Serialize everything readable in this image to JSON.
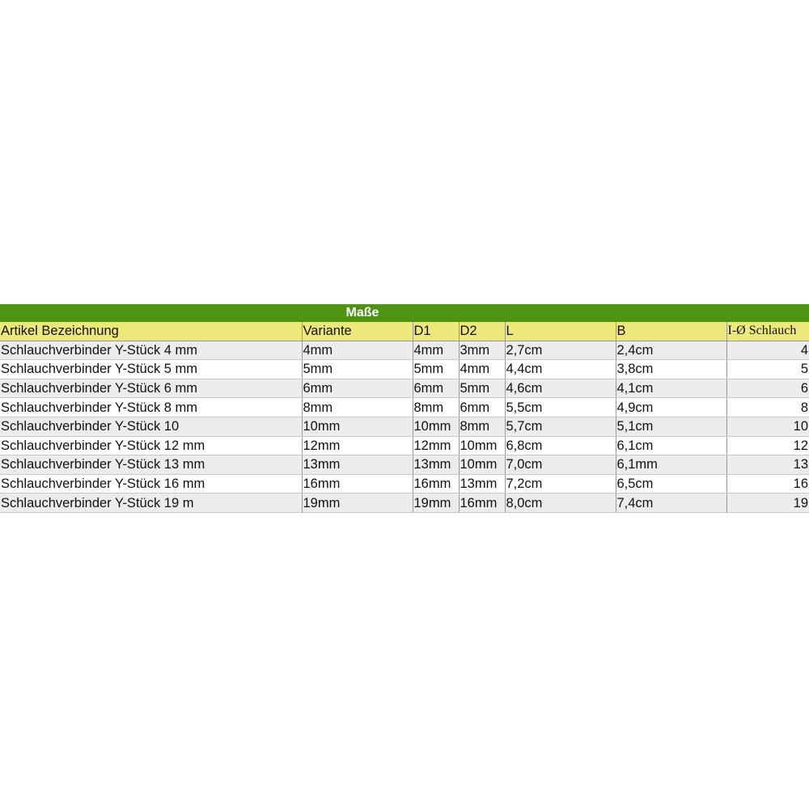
{
  "title": "Maße",
  "headers": [
    "Artikel Bezeichnung",
    "Variante",
    "D1",
    "D2",
    "L",
    "B",
    "I-Ø Schlauch"
  ],
  "rows": [
    [
      "Schlauchverbinder Y-Stück 4 mm",
      "4mm",
      "4mm",
      "3mm",
      "2,7cm",
      "2,4cm",
      "4"
    ],
    [
      "Schlauchverbinder Y-Stück 5 mm",
      "5mm",
      "5mm",
      "4mm",
      "4,4cm",
      "3,8cm",
      "5"
    ],
    [
      "Schlauchverbinder Y-Stück 6 mm",
      "6mm",
      "6mm",
      "5mm",
      "4,6cm",
      "4,1cm",
      "6"
    ],
    [
      "Schlauchverbinder Y-Stück 8 mm",
      "8mm",
      "8mm",
      "6mm",
      "5,5cm",
      "4,9cm",
      "8"
    ],
    [
      "Schlauchverbinder Y-Stück 10",
      "10mm",
      "10mm",
      "8mm",
      "5,7cm",
      "5,1cm",
      "10"
    ],
    [
      "Schlauchverbinder Y-Stück 12 mm",
      "12mm",
      "12mm",
      "10mm",
      "6,8cm",
      "6,1cm",
      "12"
    ],
    [
      "Schlauchverbinder Y-Stück 13 mm",
      "13mm",
      "13mm",
      "10mm",
      "7,0cm",
      "6,1mm",
      "13"
    ],
    [
      "Schlauchverbinder Y-Stück 16 mm",
      "16mm",
      "16mm",
      "13mm",
      "7,2cm",
      "6,5cm",
      "16"
    ],
    [
      "Schlauchverbinder Y-Stück 19 m",
      "19mm",
      "19mm",
      "16mm",
      "8,0cm",
      "7,4cm",
      "19"
    ]
  ],
  "colors": {
    "title_bg": "#4e9312",
    "header_bg": "#ede87a",
    "stripe": "#ececec"
  }
}
